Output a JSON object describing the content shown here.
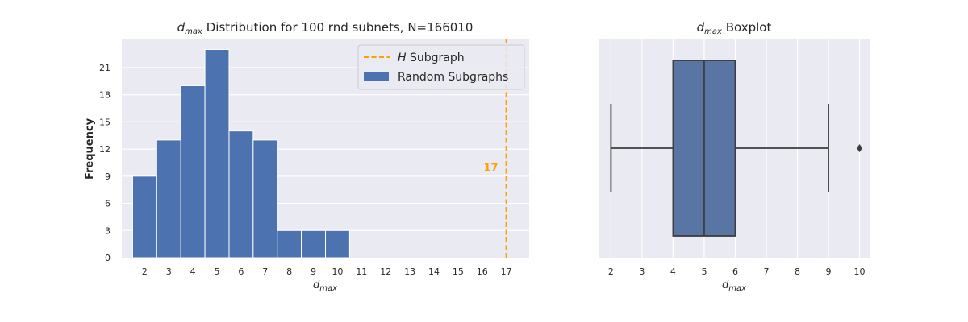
{
  "chart_data": [
    {
      "type": "bar",
      "title": "Distribution for 100 rnd subnets, N=166010",
      "title_symbol": "d",
      "title_symbol_sub": "max",
      "xlabel_symbol": "d",
      "xlabel_symbol_sub": "max",
      "ylabel": "Frequency",
      "categories": [
        2,
        3,
        4,
        5,
        6,
        7,
        8,
        9,
        10
      ],
      "values": [
        9,
        13,
        19,
        23,
        14,
        13,
        3,
        3,
        3
      ],
      "xticks": [
        2,
        3,
        4,
        5,
        6,
        7,
        8,
        9,
        10,
        11,
        12,
        13,
        14,
        15,
        16,
        17
      ],
      "yticks": [
        0,
        3,
        6,
        9,
        12,
        15,
        18,
        21
      ],
      "xlim": [
        1.05,
        17.95
      ],
      "ylim": [
        0,
        24.2
      ],
      "reference_line": {
        "x": 17,
        "label_symbol": "H",
        "label_text": "Subgraph",
        "annotation": "17",
        "color": "#ff9f00"
      },
      "legend": {
        "placement": "top-right",
        "entries": [
          "Subgraph",
          "Random Subgraphs"
        ]
      },
      "bar_color": "#4c72b0",
      "grid": true
    },
    {
      "type": "box",
      "title": "Boxplot",
      "title_symbol": "d",
      "title_symbol_sub": "max",
      "xlabel_symbol": "d",
      "xlabel_symbol_sub": "max",
      "box": {
        "whisker_low": 2,
        "q1": 4,
        "median": 5,
        "q3": 6,
        "whisker_high": 9,
        "outliers": [
          10
        ]
      },
      "xticks": [
        2,
        3,
        4,
        5,
        6,
        7,
        8,
        9,
        10
      ],
      "xlim": [
        1.6,
        10.35
      ],
      "box_color": "#5875a4",
      "line_color": "#3d3d3d",
      "grid": true
    }
  ]
}
